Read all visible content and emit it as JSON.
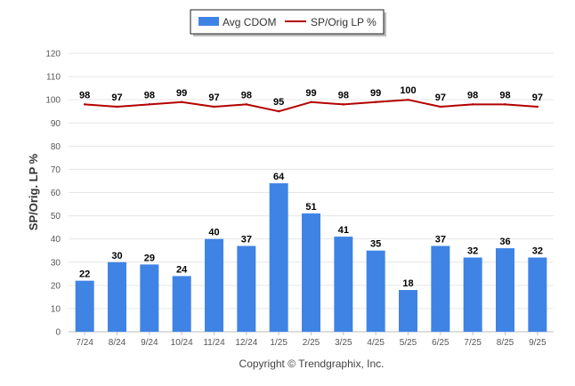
{
  "chart_data": {
    "type": "bar",
    "categories": [
      "7/24",
      "8/24",
      "9/24",
      "10/24",
      "11/24",
      "12/24",
      "1/25",
      "2/25",
      "3/25",
      "4/25",
      "5/25",
      "6/25",
      "7/25",
      "8/25",
      "9/25"
    ],
    "series": [
      {
        "name": "Avg CDOM",
        "kind": "bar",
        "color": "#3f84e5",
        "values": [
          22,
          30,
          29,
          24,
          40,
          37,
          64,
          51,
          41,
          35,
          18,
          37,
          32,
          36,
          32
        ]
      },
      {
        "name": "SP/Orig LP %",
        "kind": "line",
        "color": "#b30000",
        "values": [
          98,
          97,
          98,
          99,
          97,
          98,
          95,
          99,
          98,
          99,
          100,
          97,
          98,
          98,
          97
        ]
      }
    ],
    "ylabel": "SP/Orig. LP %",
    "ylim": [
      0,
      120
    ],
    "yticks": [
      0,
      10,
      20,
      30,
      40,
      50,
      60,
      70,
      80,
      90,
      100,
      110,
      120
    ],
    "grid": true,
    "legend_position": "top-center",
    "footer": "Copyright © Trendgraphix, Inc."
  }
}
